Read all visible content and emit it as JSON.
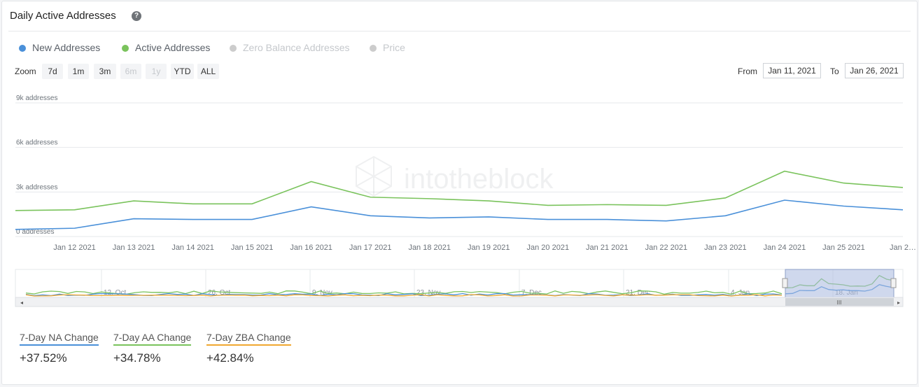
{
  "header": {
    "title": "Daily Active Addresses",
    "help_icon": "question-circle-icon"
  },
  "legend": [
    {
      "label": "New Addresses",
      "color": "#4a90d9",
      "active": true
    },
    {
      "label": "Active Addresses",
      "color": "#7ac35c",
      "active": true
    },
    {
      "label": "Zero Balance Addresses",
      "color": "#cccccc",
      "active": false
    },
    {
      "label": "Price",
      "color": "#cccccc",
      "active": false
    }
  ],
  "zoom": {
    "label": "Zoom",
    "buttons": [
      {
        "label": "7d",
        "enabled": true
      },
      {
        "label": "1m",
        "enabled": true
      },
      {
        "label": "3m",
        "enabled": true
      },
      {
        "label": "6m",
        "enabled": false
      },
      {
        "label": "1y",
        "enabled": false
      },
      {
        "label": "YTD",
        "enabled": true
      },
      {
        "label": "ALL",
        "enabled": true
      }
    ]
  },
  "range": {
    "from_label": "From",
    "from_value": "Jan 11, 2021",
    "to_label": "To",
    "to_value": "Jan 26, 2021"
  },
  "watermark": "intotheblock",
  "chart_data": {
    "type": "line",
    "x": [
      "Jan 11 2021",
      "Jan 12 2021",
      "Jan 13 2021",
      "Jan 14 2021",
      "Jan 15 2021",
      "Jan 16 2021",
      "Jan 17 2021",
      "Jan 18 2021",
      "Jan 19 2021",
      "Jan 20 2021",
      "Jan 21 2021",
      "Jan 22 2021",
      "Jan 23 2021",
      "Jan 24 2021",
      "Jan 25 2021",
      "Jan 26 2021"
    ],
    "x_tick_labels": [
      "Jan 12 2021",
      "Jan 13 2021",
      "Jan 14 2021",
      "Jan 15 2021",
      "Jan 16 2021",
      "Jan 17 2021",
      "Jan 18 2021",
      "Jan 19 2021",
      "Jan 20 2021",
      "Jan 21 2021",
      "Jan 22 2021",
      "Jan 23 2021",
      "Jan 24 2021",
      "Jan 25 2021",
      "Jan 2…"
    ],
    "y_tick_labels": [
      "0 addresses",
      "3k addresses",
      "6k addresses",
      "9k addresses"
    ],
    "y_ticks": [
      0,
      3000,
      6000,
      9000
    ],
    "ylim": [
      0,
      9000
    ],
    "series": [
      {
        "name": "Active Addresses",
        "color": "#7ac35c",
        "values": [
          1750,
          1800,
          2400,
          2200,
          2200,
          3700,
          2650,
          2550,
          2400,
          2100,
          2150,
          2100,
          2600,
          4400,
          3600,
          3300
        ]
      },
      {
        "name": "New Addresses",
        "color": "#4a90d9",
        "values": [
          480,
          560,
          1200,
          1150,
          1150,
          2000,
          1400,
          1250,
          1320,
          1150,
          1150,
          1050,
          1400,
          2450,
          2050,
          1800
        ]
      }
    ],
    "navigator": {
      "labels": [
        "12. Oct",
        "26. Oct",
        "9. Nov",
        "23. Nov",
        "7. Dec",
        "21. Dec",
        "4. Jan",
        "18. Jan"
      ],
      "scrollbar_grip": "III"
    },
    "grid": true
  },
  "stats": [
    {
      "label": "7-Day NA Change",
      "value": "+37.52%",
      "color": "#4a90d9"
    },
    {
      "label": "7-Day AA Change",
      "value": "+34.78%",
      "color": "#7ac35c"
    },
    {
      "label": "7-Day ZBA Change",
      "value": "+42.84%",
      "color": "#f0a830"
    }
  ]
}
